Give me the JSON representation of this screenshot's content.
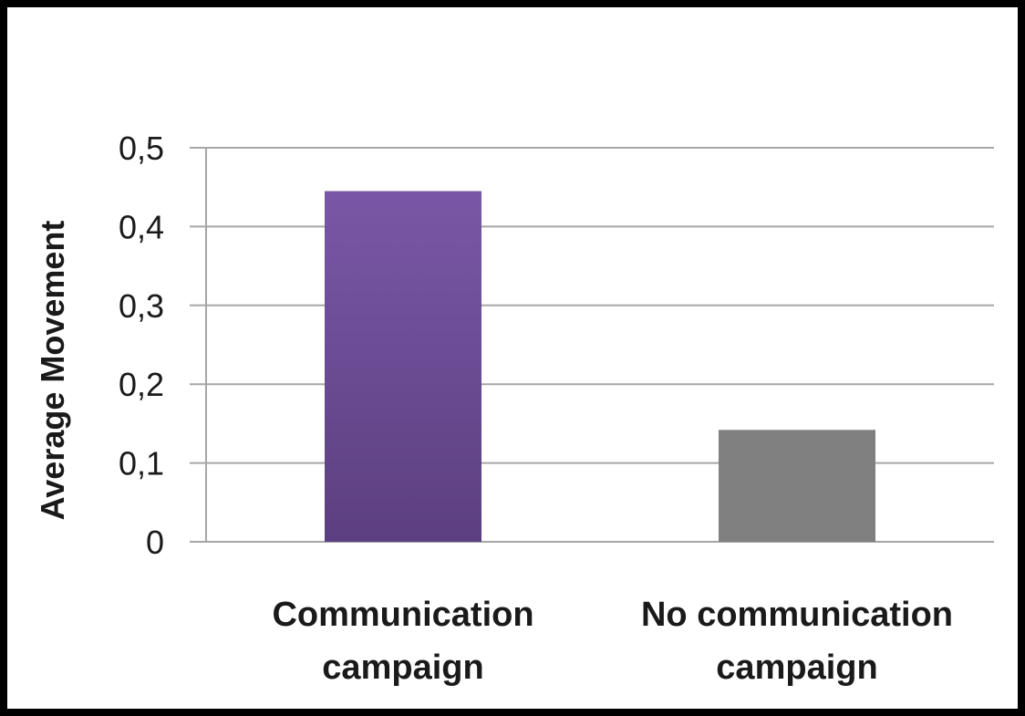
{
  "chart_data": {
    "type": "bar",
    "categories": [
      [
        "Communication",
        "campaign"
      ],
      [
        "No communication",
        "campaign"
      ]
    ],
    "values": [
      0.445,
      0.142
    ],
    "ylabel": "Average Movement",
    "ylim": [
      0,
      0.5
    ],
    "yticks": [
      "0",
      "0,1",
      "0,2",
      "0,3",
      "0,4",
      "0,5"
    ],
    "grid": true,
    "bar_colors": [
      "#7a57a6",
      "#808080"
    ],
    "bar_gradient_dark": "#5c3f80"
  }
}
